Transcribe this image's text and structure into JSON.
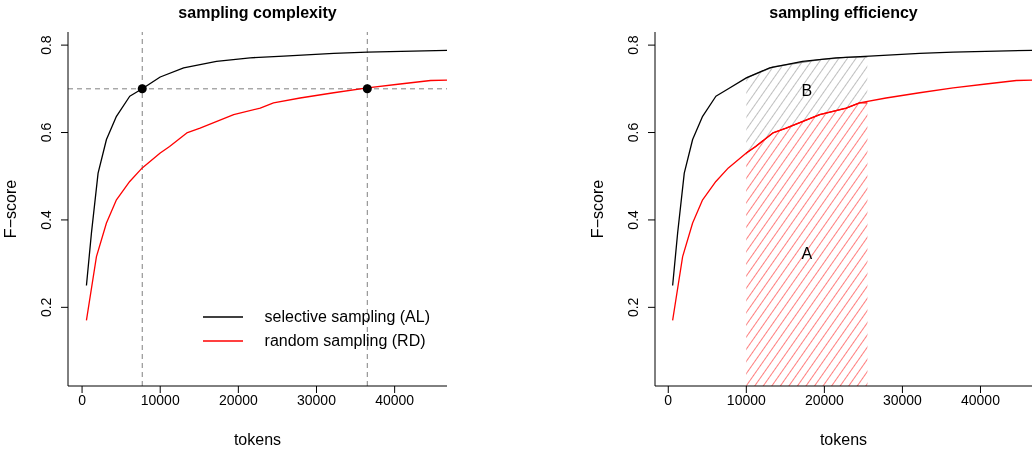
{
  "chart_data": [
    {
      "type": "line",
      "title": "sampling complexity",
      "xlabel": "tokens",
      "ylabel": "F−score",
      "xlim": [
        -1800,
        46700
      ],
      "ylim": [
        0.02,
        0.83
      ],
      "xticks": [
        0,
        10000,
        20000,
        30000,
        40000
      ],
      "yticks": [
        0.2,
        0.4,
        0.6,
        0.8
      ],
      "grid": false,
      "legend": "bottom right",
      "marker": "none",
      "line_style": "solid",
      "series": [
        {
          "name": "selective sampling (AL)",
          "color": "#000000",
          "x": [
            560,
            1200,
            2050,
            3120,
            4400,
            6100,
            7700,
            10000,
            13000,
            17200,
            21500,
            25800,
            32200,
            36500,
            46700
          ],
          "values": [
            0.25,
            0.37,
            0.507,
            0.584,
            0.637,
            0.683,
            0.7,
            0.727,
            0.748,
            0.763,
            0.771,
            0.775,
            0.781,
            0.784,
            0.788
          ]
        },
        {
          "name": "random sampling (RD)",
          "color": "#ff0000",
          "x": [
            560,
            1840,
            3120,
            4400,
            6100,
            7700,
            10000,
            11200,
            13400,
            15100,
            19400,
            22800,
            24500,
            27900,
            32200,
            36500,
            40700,
            44600,
            46700
          ],
          "values": [
            0.17,
            0.316,
            0.393,
            0.446,
            0.488,
            0.519,
            0.553,
            0.568,
            0.599,
            0.61,
            0.641,
            0.656,
            0.668,
            0.679,
            0.691,
            0.702,
            0.711,
            0.719,
            0.72
          ]
        },
        {
          "type": "scatter",
          "color": "#000000",
          "marker": "circle",
          "x": [
            7700,
            36500
          ],
          "values": [
            0.7,
            0.7
          ]
        }
      ],
      "ref_lines": [
        {
          "axis": "x",
          "value": 7700,
          "color": "#808080",
          "line_style": "dashed"
        },
        {
          "axis": "x",
          "value": 36500,
          "color": "#808080",
          "line_style": "dashed"
        },
        {
          "axis": "y",
          "value": 0.7,
          "color": "#808080",
          "line_style": "dashed"
        }
      ]
    },
    {
      "type": "line",
      "title": "sampling efficiency",
      "xlabel": "tokens",
      "ylabel": "F−score",
      "xlim": [
        -1700,
        46600
      ],
      "ylim": [
        0.02,
        0.83
      ],
      "xticks": [
        0,
        10000,
        20000,
        30000,
        40000
      ],
      "yticks": [
        0.2,
        0.4,
        0.6,
        0.8
      ],
      "grid": false,
      "legend": false,
      "marker": "none",
      "line_style": "solid",
      "series": [
        {
          "type": "area",
          "name": "B",
          "color": "#808080",
          "x": [
            10000,
            13400,
            19400,
            22800,
            25500
          ],
          "values": [
            0.725,
            0.75,
            0.767,
            0.772,
            0.773
          ]
        },
        {
          "type": "area",
          "name": "A",
          "color": "#ff0000",
          "x": [
            10000,
            11200,
            13400,
            15100,
            19400,
            22800,
            24500,
            25500
          ],
          "values": [
            0.553,
            0.568,
            0.599,
            0.61,
            0.641,
            0.656,
            0.668,
            0.668
          ]
        },
        {
          "color": "#000000",
          "x": [
            560,
            1200,
            2050,
            3120,
            4400,
            6100,
            7700,
            10000,
            13000,
            17200,
            21500,
            25800,
            32200,
            36500,
            46600
          ],
          "values": [
            0.25,
            0.37,
            0.507,
            0.584,
            0.637,
            0.683,
            0.7,
            0.725,
            0.748,
            0.763,
            0.771,
            0.775,
            0.781,
            0.784,
            0.788
          ]
        },
        {
          "color": "#ff0000",
          "x": [
            560,
            1840,
            3120,
            4400,
            6100,
            7700,
            10000,
            11200,
            13400,
            15100,
            19400,
            22800,
            24500,
            27900,
            32200,
            36500,
            40700,
            44600,
            46600
          ],
          "values": [
            0.17,
            0.316,
            0.393,
            0.446,
            0.488,
            0.519,
            0.553,
            0.568,
            0.599,
            0.61,
            0.641,
            0.656,
            0.668,
            0.679,
            0.691,
            0.702,
            0.711,
            0.719,
            0.72
          ]
        }
      ]
    }
  ]
}
